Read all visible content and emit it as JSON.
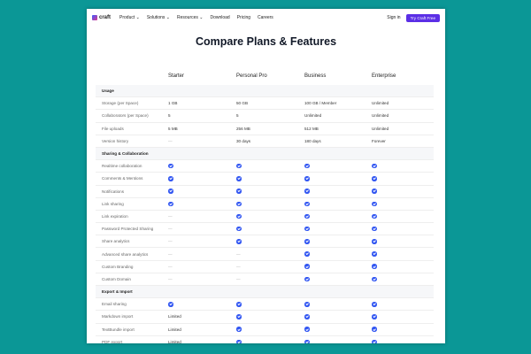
{
  "nav": {
    "brand": "craft",
    "items": [
      "Product ⌄",
      "Solutions ⌄",
      "Resources ⌄",
      "Download",
      "Pricing",
      "Careers"
    ],
    "sign_in": "Sign in",
    "cta": "Try Craft Free"
  },
  "title": "Compare Plans & Features",
  "plans": [
    "Starter",
    "Personal Pro",
    "Business",
    "Enterprise"
  ],
  "accent": "#3156f2",
  "sections": [
    {
      "name": "Usage",
      "rows": [
        [
          "Storage (per Space)",
          "1 GB",
          "50 GB",
          "100 GB / Member",
          "Unlimited"
        ],
        [
          "Collaborators (per Space)",
          "5",
          "5",
          "Unlimited",
          "Unlimited"
        ],
        [
          "File uploads",
          "5 MB",
          "256 MB",
          "512 MB",
          "Unlimited"
        ],
        [
          "Version history",
          "—",
          "30 days",
          "180 days",
          "Forever"
        ]
      ]
    },
    {
      "name": "Sharing & Collaboration",
      "rows": [
        [
          "Realtime collaboration",
          "check",
          "check",
          "check",
          "check"
        ],
        [
          "Comments & Mentions",
          "check",
          "check",
          "check",
          "check"
        ],
        [
          "Notifications",
          "check",
          "check",
          "check",
          "check"
        ],
        [
          "Link sharing",
          "check",
          "check",
          "check",
          "check"
        ],
        [
          "Link expiration",
          "—",
          "check",
          "check",
          "check"
        ],
        [
          "Password Protected Sharing",
          "—",
          "check",
          "check",
          "check"
        ],
        [
          "Share analytics",
          "—",
          "check",
          "check",
          "check"
        ],
        [
          "Advanced share analytics",
          "—",
          "—",
          "check",
          "check"
        ],
        [
          "Custom Branding",
          "—",
          "—",
          "check",
          "check"
        ],
        [
          "Custom Domain",
          "—",
          "—",
          "check",
          "check"
        ]
      ]
    },
    {
      "name": "Export & Import",
      "rows": [
        [
          "Email sharing",
          "check",
          "check",
          "check",
          "check"
        ],
        [
          "Markdown import",
          "Limited",
          "check",
          "check",
          "check"
        ],
        [
          "TextBundle import",
          "Limited",
          "check",
          "check",
          "check"
        ],
        [
          "PDF export",
          "Limited",
          "check",
          "check",
          "check"
        ]
      ]
    }
  ]
}
